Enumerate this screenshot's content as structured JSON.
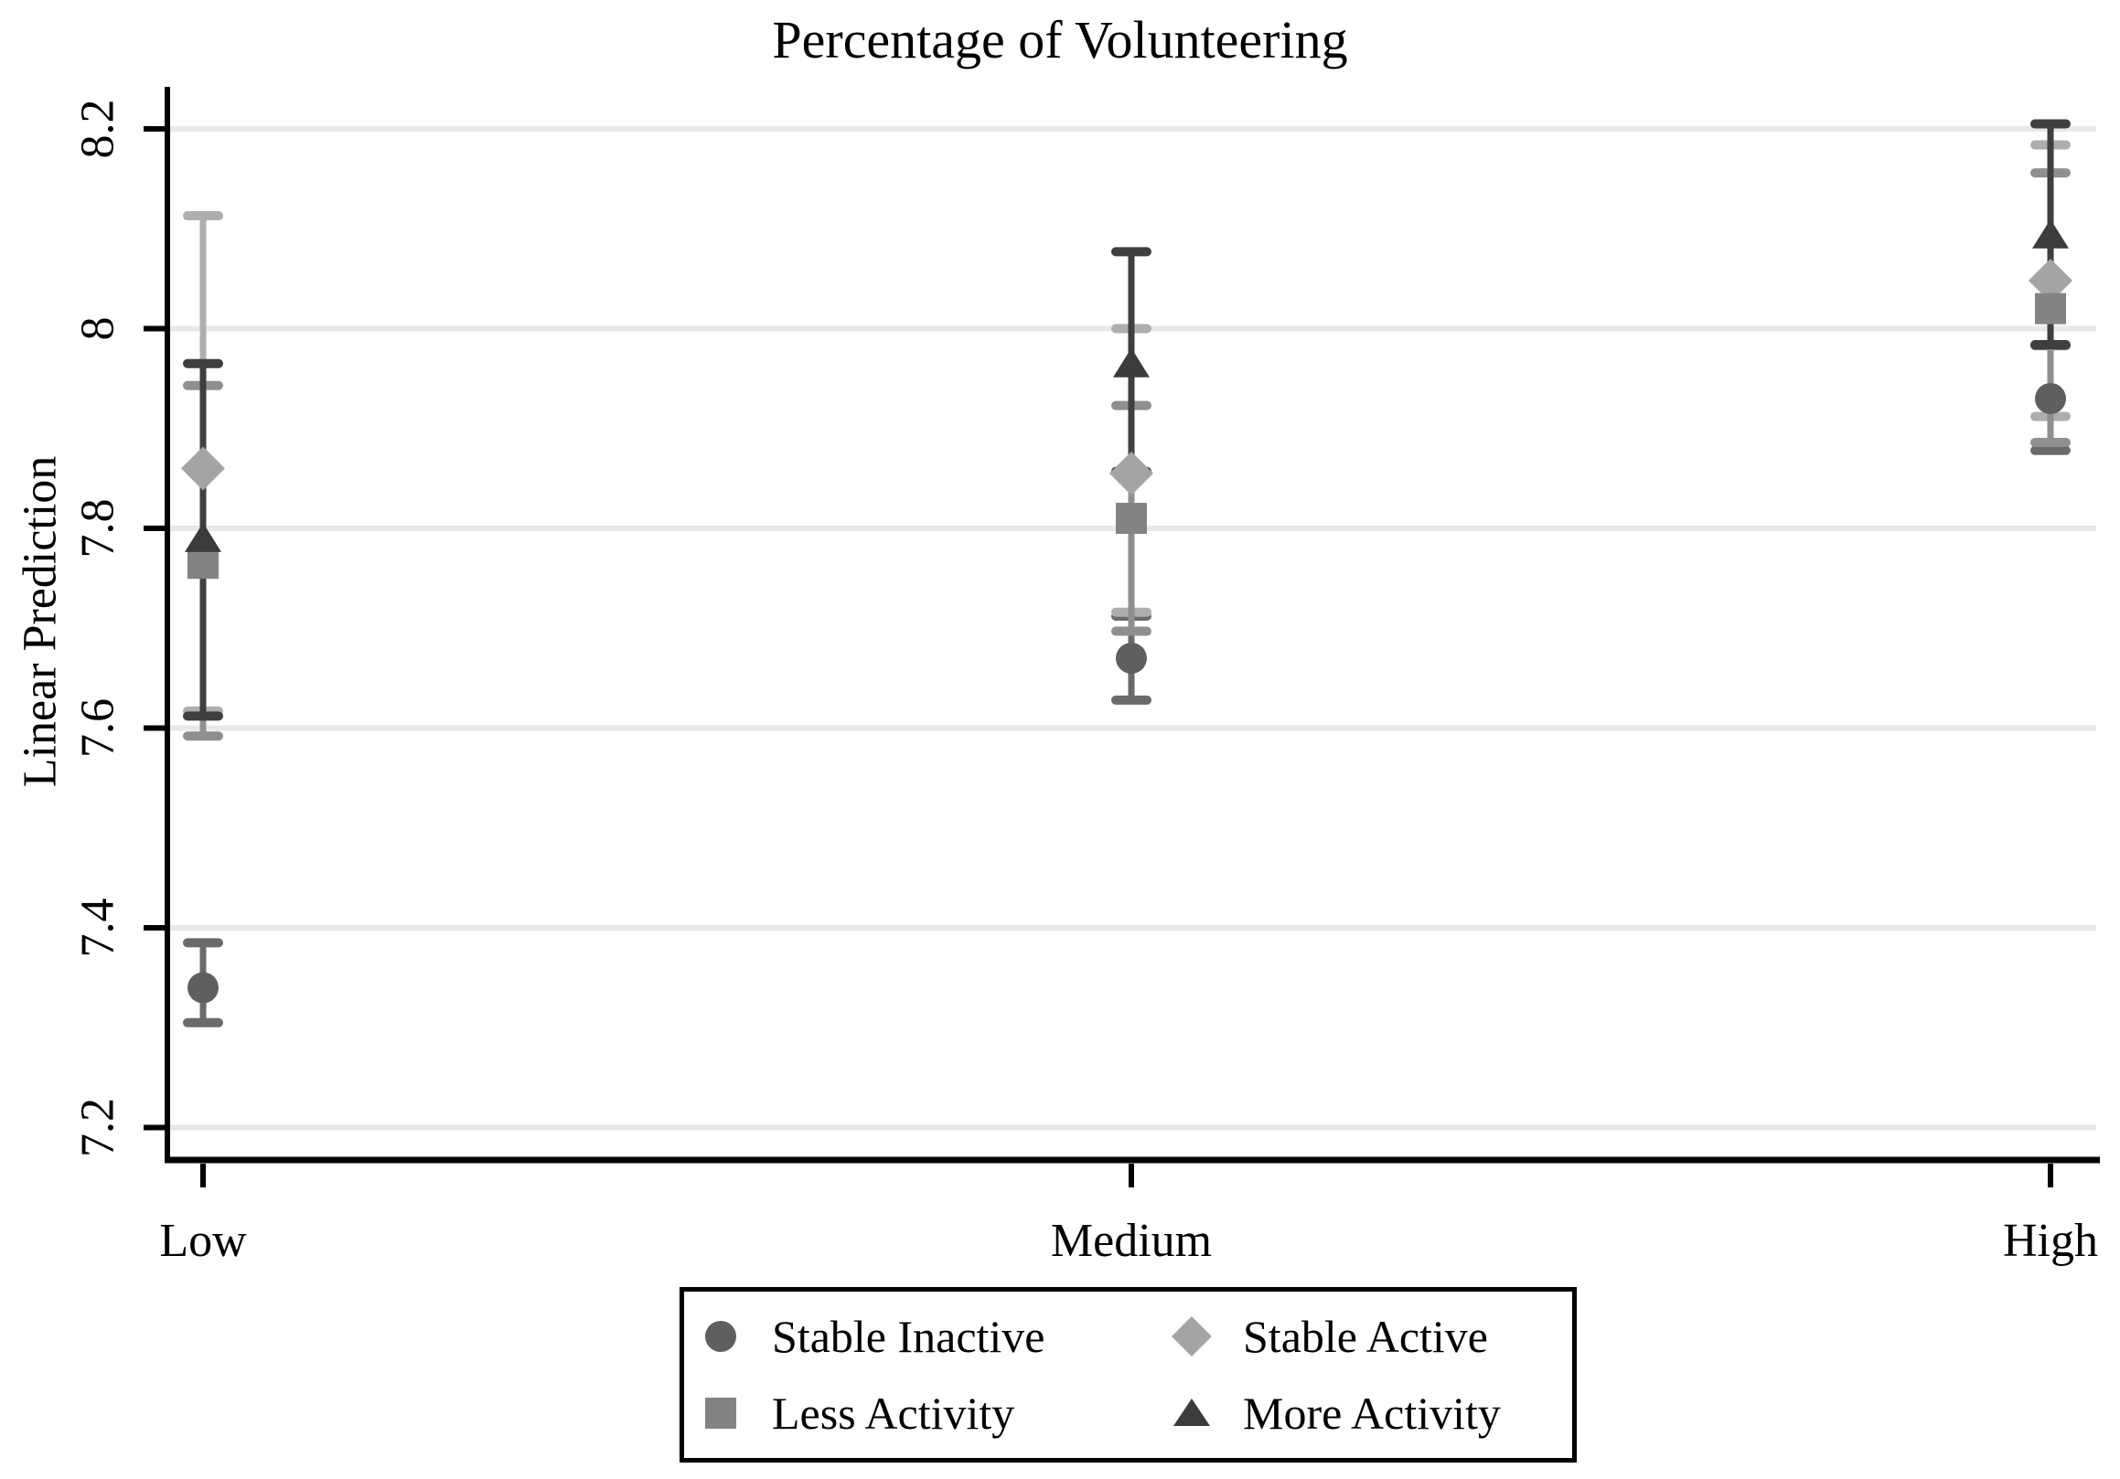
{
  "chart_data": {
    "type": "scatter",
    "title": "Percentage of Volunteering",
    "xlabel": "",
    "ylabel": "Linear Prediction",
    "categories": [
      "Low",
      "Medium",
      "High"
    ],
    "yticks": [
      {
        "v": 7.2,
        "label": "7.2"
      },
      {
        "v": 7.4,
        "label": "7.4"
      },
      {
        "v": 7.6,
        "label": "7.6"
      },
      {
        "v": 7.8,
        "label": "7.8"
      },
      {
        "v": 8.0,
        "label": "8"
      },
      {
        "v": 8.2,
        "label": "8.2"
      }
    ],
    "ylim": [
      7.15,
      8.26
    ],
    "grid": true,
    "gridline_color": "#e8e8e8",
    "axis_color": "#000000",
    "legend_position": "bottom",
    "series": [
      {
        "name": "Stable Inactive",
        "marker": "circle",
        "color": "#5f5f5f",
        "bar_color": "#6a6a6a",
        "values": [
          7.34,
          7.67,
          7.93
        ],
        "ci_low": [
          7.305,
          7.628,
          7.878
        ],
        "ci_high": [
          7.385,
          7.712,
          7.983
        ]
      },
      {
        "name": "Stable Active",
        "marker": "diamond",
        "color": "#a4a4a4",
        "bar_color": "#aeaeae",
        "values": [
          7.86,
          7.855,
          8.048
        ],
        "ci_low": [
          7.617,
          7.716,
          7.912
        ],
        "ci_high": [
          8.113,
          8.0,
          8.184
        ]
      },
      {
        "name": "Less Activity",
        "marker": "square",
        "color": "#838383",
        "bar_color": "#8f8f8f",
        "values": [
          7.765,
          7.81,
          8.02
        ],
        "ci_low": [
          7.592,
          7.697,
          7.886
        ],
        "ci_high": [
          7.943,
          7.923,
          8.156
        ]
      },
      {
        "name": "More Activity",
        "marker": "triangle",
        "color": "#3b3b3b",
        "bar_color": "#3f3f3f",
        "values": [
          7.79,
          7.965,
          8.094
        ],
        "ci_low": [
          7.612,
          7.857,
          7.984
        ],
        "ci_high": [
          7.965,
          8.077,
          8.205
        ]
      }
    ]
  }
}
